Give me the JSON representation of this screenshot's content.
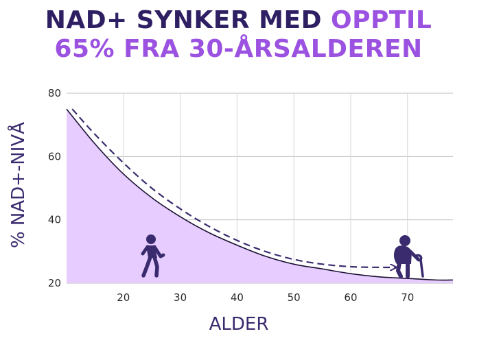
{
  "title": {
    "line1_part1": "NAD+ SYNKER MED ",
    "line1_part2": "OPPTIL",
    "line2": "65% FRA 30-ÅRSALDEREN"
  },
  "colors": {
    "title_dark": "#2e1f63",
    "title_accent": "#9b52e0",
    "area_fill": "#e6ccff",
    "line": "#1a1030",
    "dashed_line": "#3a2a6e",
    "figure": "#3a2a6e"
  },
  "icons": [
    "walking-person-icon",
    "elderly-person-with-cane-icon"
  ],
  "chart_data": {
    "type": "area",
    "xlabel": "ALDER",
    "ylabel": "% NAD+-NIVÅ",
    "xlim": [
      10,
      78
    ],
    "ylim": [
      20,
      80
    ],
    "xticks": [
      20,
      30,
      40,
      50,
      60,
      70
    ],
    "yticks": [
      20,
      40,
      60,
      80
    ],
    "grid": true,
    "legend": "none",
    "series": [
      {
        "style": "solid-line-with-filled-area",
        "x": [
          10,
          15,
          20,
          25,
          30,
          35,
          40,
          45,
          50,
          55,
          60,
          65,
          70,
          75,
          78
        ],
        "y": [
          75,
          64,
          54.5,
          47,
          41,
          36,
          32,
          28.5,
          26,
          24.5,
          23,
          22,
          21.5,
          21,
          21
        ]
      },
      {
        "style": "dashed-arrow",
        "x": [
          11,
          15,
          20,
          25,
          30,
          35,
          40,
          45,
          50,
          55,
          60,
          65,
          68
        ],
        "y": [
          75,
          67,
          58,
          50,
          43.5,
          38,
          33.5,
          30,
          27.5,
          26,
          25.2,
          25,
          25
        ]
      }
    ]
  }
}
